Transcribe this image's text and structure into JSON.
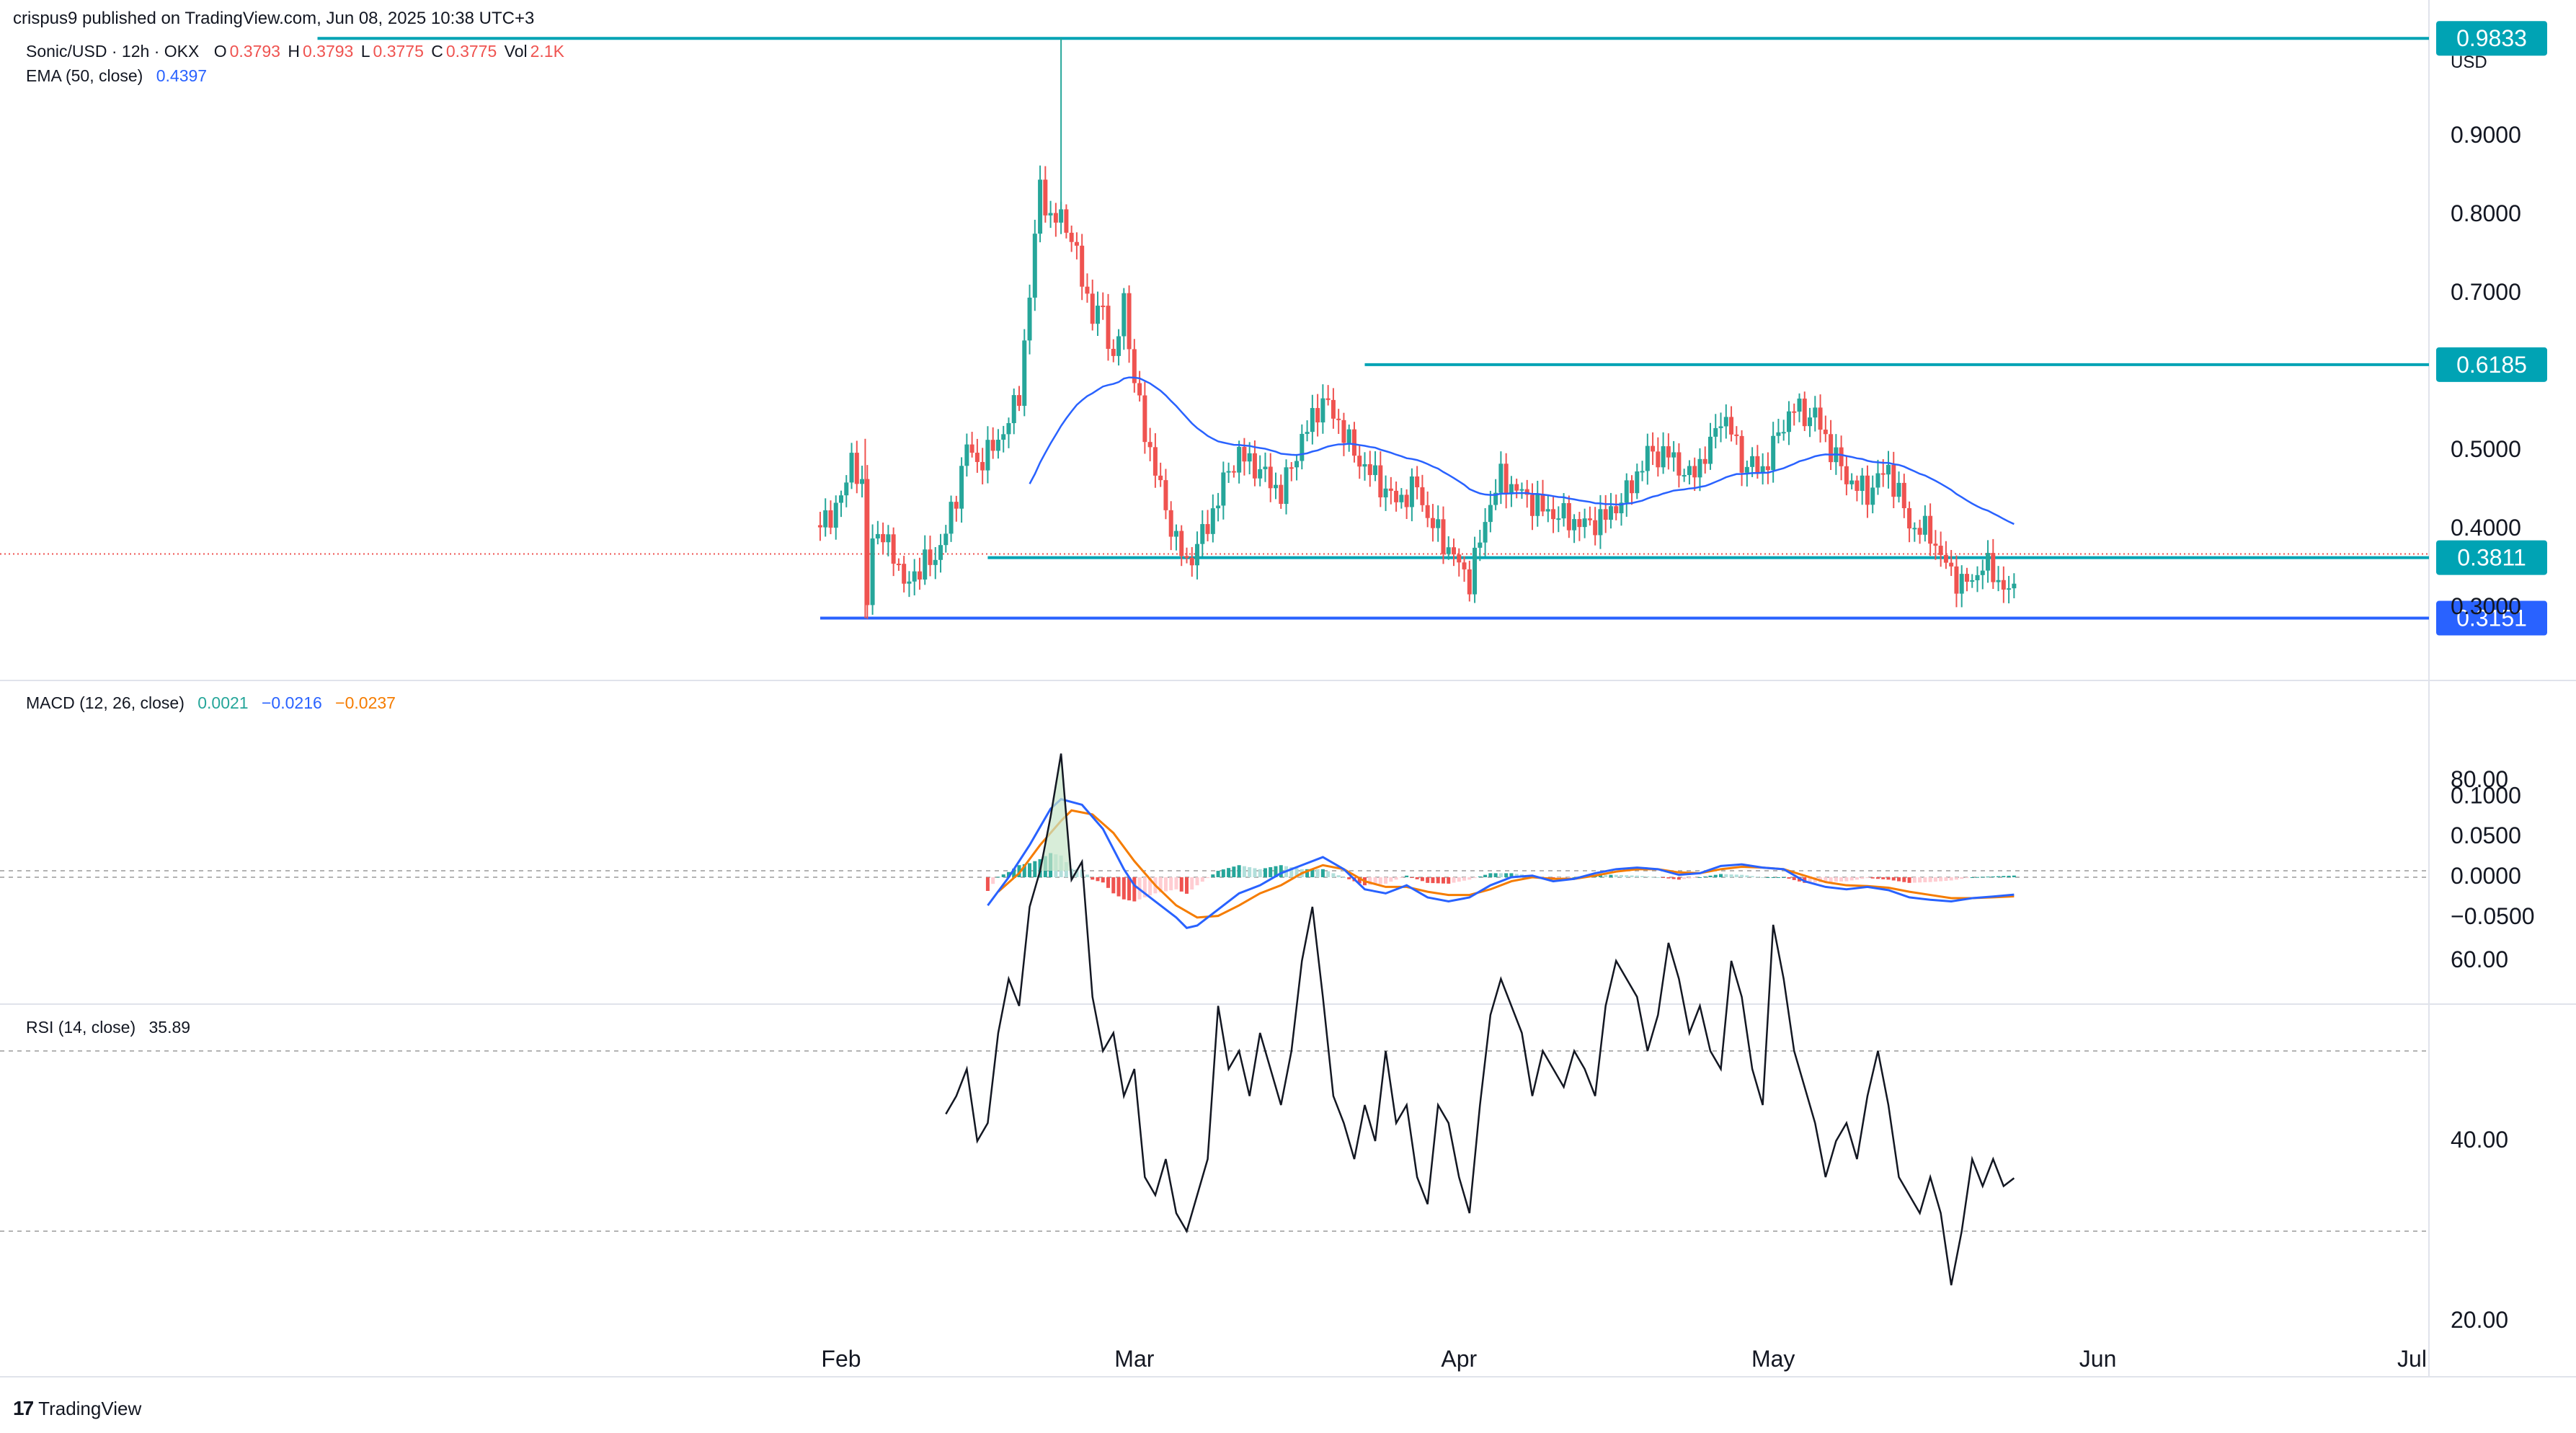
{
  "header": {
    "published": "crispus9 published on TradingView.com, Jun 08, 2025 10:38 UTC+3"
  },
  "legend": {
    "symbol": "Sonic/USD · 12h · OKX",
    "o_label": "O",
    "o_value": "0.3793",
    "h_label": "H",
    "h_value": "0.3793",
    "l_label": "L",
    "l_value": "0.3775",
    "c_label": "C",
    "c_value": "0.3775",
    "vol_label": "Vol",
    "vol_value": "2.1K",
    "ema_label": "EMA (50, close)",
    "ema_value": "0.4397",
    "macd_label": "MACD (12, 26, close)",
    "macd_hist": "0.0021",
    "macd_line": "−0.0216",
    "macd_signal": "−0.0237",
    "rsi_label": "RSI (14, close)",
    "rsi_value": "35.89"
  },
  "branding": {
    "name": "TradingView"
  },
  "colors": {
    "up": "#26a69a",
    "down": "#ef5350",
    "ema": "#2962ff",
    "level": "#00a3b4",
    "low_level": "#2962ff",
    "macd": "#2962ff",
    "signal": "#f57c00",
    "rsi": "#131722",
    "grid_dash": "#9a9a9a",
    "text": "#131722"
  },
  "chart_data": [
    {
      "type": "candlestick",
      "title": "Sonic/USD · 12h · OKX",
      "currency": "USD",
      "x_ticks": [
        "Feb",
        "Mar",
        "Apr",
        "May",
        "Jun",
        "Jul"
      ],
      "x_tick_days": [
        0,
        28,
        59,
        89,
        120,
        150
      ],
      "x_range_days": [
        0,
        150
      ],
      "y_ticks": [
        0.9,
        0.8,
        0.7,
        0.5,
        0.4,
        0.3
      ],
      "y_tick_labels": [
        "0.9000",
        "0.8000",
        "0.7000",
        "0.5000",
        "0.4000",
        "0.3000"
      ],
      "y_range": [
        0.3,
        1.0
      ],
      "levels": [
        {
          "value": 0.9833,
          "label": "0.9833",
          "from_day": -50
        },
        {
          "value": 0.6185,
          "label": "0.6185",
          "from_day": 50
        },
        {
          "value": 0.3811,
          "label": "0.3811",
          "from_day": 14
        },
        {
          "value": 0.3151,
          "label": "0.3151",
          "from_day": -2
        }
      ],
      "last_price": 0.3775,
      "price_keyframes": [
        [
          -2,
          0.46
        ],
        [
          0,
          0.49
        ],
        [
          1,
          0.55
        ],
        [
          2,
          0.5
        ],
        [
          2.3,
          0.33
        ],
        [
          3,
          0.45
        ],
        [
          5,
          0.43
        ],
        [
          6,
          0.38
        ],
        [
          7,
          0.4
        ],
        [
          9,
          0.42
        ],
        [
          10,
          0.45
        ],
        [
          11,
          0.5
        ],
        [
          12,
          0.56
        ],
        [
          13,
          0.54
        ],
        [
          14,
          0.55
        ],
        [
          15,
          0.57
        ],
        [
          16,
          0.59
        ],
        [
          17,
          0.63
        ],
        [
          18,
          0.75
        ],
        [
          19,
          0.9
        ],
        [
          20,
          0.84
        ],
        [
          21,
          0.86
        ],
        [
          22,
          0.82
        ],
        [
          23,
          0.78
        ],
        [
          24,
          0.72
        ],
        [
          25,
          0.74
        ],
        [
          26,
          0.66
        ],
        [
          27,
          0.75
        ],
        [
          28,
          0.64
        ],
        [
          29,
          0.58
        ],
        [
          30,
          0.53
        ],
        [
          31,
          0.48
        ],
        [
          32,
          0.44
        ],
        [
          33,
          0.41
        ],
        [
          35,
          0.46
        ],
        [
          37,
          0.53
        ],
        [
          38,
          0.55
        ],
        [
          40,
          0.53
        ],
        [
          42,
          0.5
        ],
        [
          44,
          0.57
        ],
        [
          46,
          0.62
        ],
        [
          47,
          0.6
        ],
        [
          48,
          0.58
        ],
        [
          49,
          0.55
        ],
        [
          51,
          0.52
        ],
        [
          53,
          0.49
        ],
        [
          55,
          0.51
        ],
        [
          56,
          0.47
        ],
        [
          58,
          0.43
        ],
        [
          60,
          0.39
        ],
        [
          61,
          0.44
        ],
        [
          62,
          0.49
        ],
        [
          63,
          0.52
        ],
        [
          65,
          0.5
        ],
        [
          67,
          0.48
        ],
        [
          69,
          0.47
        ],
        [
          71,
          0.46
        ],
        [
          73,
          0.47
        ],
        [
          75,
          0.5
        ],
        [
          77,
          0.55
        ],
        [
          79,
          0.55
        ],
        [
          81,
          0.52
        ],
        [
          83,
          0.56
        ],
        [
          84,
          0.6
        ],
        [
          85,
          0.58
        ],
        [
          86,
          0.54
        ],
        [
          88,
          0.53
        ],
        [
          90,
          0.59
        ],
        [
          91,
          0.61
        ],
        [
          92,
          0.6
        ],
        [
          93,
          0.6
        ],
        [
          94,
          0.57
        ],
        [
          96,
          0.52
        ],
        [
          97,
          0.51
        ],
        [
          98,
          0.5
        ],
        [
          99,
          0.52
        ],
        [
          100,
          0.53
        ],
        [
          101,
          0.5
        ],
        [
          102,
          0.46
        ],
        [
          104,
          0.45
        ],
        [
          105,
          0.42
        ],
        [
          106,
          0.4
        ],
        [
          107,
          0.385
        ],
        [
          108,
          0.39
        ],
        [
          109,
          0.41
        ],
        [
          110,
          0.4
        ],
        [
          111,
          0.38
        ],
        [
          111.5,
          0.375
        ],
        [
          112,
          0.3775
        ]
      ],
      "ema": {
        "name": "EMA (50, close)",
        "value": 0.4397
      }
    },
    {
      "type": "histogram+line",
      "title": "MACD (12, 26, close)",
      "y_ticks": [
        0.1,
        0.05,
        0.0,
        -0.05
      ],
      "y_tick_labels": [
        "0.1000",
        "0.0500",
        "0.0000",
        "−0.0500"
      ],
      "y_range": [
        -0.068,
        0.105
      ],
      "macd_keyframes": [
        [
          14,
          -0.035
        ],
        [
          16,
          0.0
        ],
        [
          18,
          0.04
        ],
        [
          20,
          0.085
        ],
        [
          21,
          0.097
        ],
        [
          23,
          0.09
        ],
        [
          25,
          0.06
        ],
        [
          27,
          0.01
        ],
        [
          28,
          -0.01
        ],
        [
          30,
          -0.03
        ],
        [
          32,
          -0.05
        ],
        [
          33,
          -0.063
        ],
        [
          34,
          -0.06
        ],
        [
          36,
          -0.04
        ],
        [
          38,
          -0.02
        ],
        [
          40,
          -0.01
        ],
        [
          42,
          0.005
        ],
        [
          44,
          0.015
        ],
        [
          46,
          0.025
        ],
        [
          48,
          0.01
        ],
        [
          50,
          -0.015
        ],
        [
          52,
          -0.02
        ],
        [
          54,
          -0.01
        ],
        [
          56,
          -0.025
        ],
        [
          58,
          -0.03
        ],
        [
          60,
          -0.025
        ],
        [
          62,
          -0.01
        ],
        [
          64,
          0.0
        ],
        [
          66,
          0.002
        ],
        [
          68,
          -0.005
        ],
        [
          70,
          -0.002
        ],
        [
          72,
          0.005
        ],
        [
          74,
          0.01
        ],
        [
          76,
          0.012
        ],
        [
          78,
          0.01
        ],
        [
          80,
          0.003
        ],
        [
          82,
          0.005
        ],
        [
          84,
          0.014
        ],
        [
          86,
          0.016
        ],
        [
          88,
          0.012
        ],
        [
          90,
          0.01
        ],
        [
          92,
          -0.005
        ],
        [
          94,
          -0.012
        ],
        [
          96,
          -0.015
        ],
        [
          98,
          -0.012
        ],
        [
          100,
          -0.016
        ],
        [
          102,
          -0.025
        ],
        [
          104,
          -0.028
        ],
        [
          106,
          -0.03
        ],
        [
          108,
          -0.026
        ],
        [
          110,
          -0.024
        ],
        [
          112,
          -0.0216
        ]
      ],
      "signal_keyframes": [
        [
          15,
          -0.018
        ],
        [
          17,
          0.005
        ],
        [
          19,
          0.04
        ],
        [
          21,
          0.07
        ],
        [
          22,
          0.083
        ],
        [
          24,
          0.078
        ],
        [
          26,
          0.055
        ],
        [
          28,
          0.02
        ],
        [
          30,
          -0.01
        ],
        [
          32,
          -0.035
        ],
        [
          34,
          -0.05
        ],
        [
          36,
          -0.048
        ],
        [
          38,
          -0.035
        ],
        [
          40,
          -0.02
        ],
        [
          42,
          -0.01
        ],
        [
          44,
          0.005
        ],
        [
          46,
          0.015
        ],
        [
          48,
          0.01
        ],
        [
          50,
          -0.005
        ],
        [
          52,
          -0.012
        ],
        [
          54,
          -0.012
        ],
        [
          56,
          -0.018
        ],
        [
          58,
          -0.022
        ],
        [
          60,
          -0.022
        ],
        [
          62,
          -0.015
        ],
        [
          64,
          -0.005
        ],
        [
          66,
          0.0
        ],
        [
          68,
          -0.002
        ],
        [
          70,
          -0.002
        ],
        [
          72,
          0.002
        ],
        [
          74,
          0.007
        ],
        [
          76,
          0.01
        ],
        [
          78,
          0.01
        ],
        [
          80,
          0.006
        ],
        [
          82,
          0.005
        ],
        [
          84,
          0.01
        ],
        [
          86,
          0.013
        ],
        [
          88,
          0.012
        ],
        [
          90,
          0.01
        ],
        [
          92,
          0.002
        ],
        [
          94,
          -0.006
        ],
        [
          96,
          -0.01
        ],
        [
          98,
          -0.011
        ],
        [
          100,
          -0.013
        ],
        [
          102,
          -0.018
        ],
        [
          104,
          -0.022
        ],
        [
          106,
          -0.026
        ],
        [
          108,
          -0.026
        ],
        [
          110,
          -0.025
        ],
        [
          112,
          -0.0237
        ]
      ],
      "last": {
        "histogram": 0.0021,
        "macd": -0.0216,
        "signal": -0.0237
      }
    },
    {
      "type": "line",
      "title": "RSI (14, close)",
      "y_ticks": [
        80,
        60,
        40,
        20
      ],
      "y_tick_labels": [
        "80.00",
        "60.00",
        "40.00",
        "20.00"
      ],
      "y_range": [
        14,
        86
      ],
      "bands": [
        70,
        50,
        30
      ],
      "rsi_keyframes": [
        [
          10,
          43
        ],
        [
          11,
          45
        ],
        [
          12,
          48
        ],
        [
          13,
          40
        ],
        [
          14,
          42
        ],
        [
          15,
          52
        ],
        [
          16,
          58
        ],
        [
          17,
          55
        ],
        [
          18,
          66
        ],
        [
          19,
          70
        ],
        [
          20,
          76
        ],
        [
          21,
          83
        ],
        [
          22,
          69
        ],
        [
          23,
          71
        ],
        [
          24,
          56
        ],
        [
          25,
          50
        ],
        [
          26,
          52
        ],
        [
          27,
          45
        ],
        [
          28,
          48
        ],
        [
          29,
          36
        ],
        [
          30,
          34
        ],
        [
          31,
          38
        ],
        [
          32,
          32
        ],
        [
          33,
          30
        ],
        [
          34,
          34
        ],
        [
          35,
          38
        ],
        [
          36,
          55
        ],
        [
          37,
          48
        ],
        [
          38,
          50
        ],
        [
          39,
          45
        ],
        [
          40,
          52
        ],
        [
          41,
          48
        ],
        [
          42,
          44
        ],
        [
          43,
          50
        ],
        [
          44,
          60
        ],
        [
          45,
          66
        ],
        [
          46,
          56
        ],
        [
          47,
          45
        ],
        [
          48,
          42
        ],
        [
          49,
          38
        ],
        [
          50,
          44
        ],
        [
          51,
          40
        ],
        [
          52,
          50
        ],
        [
          53,
          42
        ],
        [
          54,
          44
        ],
        [
          55,
          36
        ],
        [
          56,
          33
        ],
        [
          57,
          44
        ],
        [
          58,
          42
        ],
        [
          59,
          36
        ],
        [
          60,
          32
        ],
        [
          61,
          44
        ],
        [
          62,
          54
        ],
        [
          63,
          58
        ],
        [
          64,
          55
        ],
        [
          65,
          52
        ],
        [
          66,
          45
        ],
        [
          67,
          50
        ],
        [
          68,
          48
        ],
        [
          69,
          46
        ],
        [
          70,
          50
        ],
        [
          71,
          48
        ],
        [
          72,
          45
        ],
        [
          73,
          55
        ],
        [
          74,
          60
        ],
        [
          75,
          58
        ],
        [
          76,
          56
        ],
        [
          77,
          50
        ],
        [
          78,
          54
        ],
        [
          79,
          62
        ],
        [
          80,
          58
        ],
        [
          81,
          52
        ],
        [
          82,
          55
        ],
        [
          83,
          50
        ],
        [
          84,
          48
        ],
        [
          85,
          60
        ],
        [
          86,
          56
        ],
        [
          87,
          48
        ],
        [
          88,
          44
        ],
        [
          89,
          64
        ],
        [
          90,
          58
        ],
        [
          91,
          50
        ],
        [
          92,
          46
        ],
        [
          93,
          42
        ],
        [
          94,
          36
        ],
        [
          95,
          40
        ],
        [
          96,
          42
        ],
        [
          97,
          38
        ],
        [
          98,
          45
        ],
        [
          99,
          50
        ],
        [
          100,
          44
        ],
        [
          101,
          36
        ],
        [
          102,
          34
        ],
        [
          103,
          32
        ],
        [
          104,
          36
        ],
        [
          105,
          32
        ],
        [
          106,
          24
        ],
        [
          107,
          30
        ],
        [
          108,
          38
        ],
        [
          109,
          35
        ],
        [
          110,
          38
        ],
        [
          111,
          35
        ],
        [
          112,
          35.89
        ]
      ],
      "last": 35.89
    }
  ]
}
